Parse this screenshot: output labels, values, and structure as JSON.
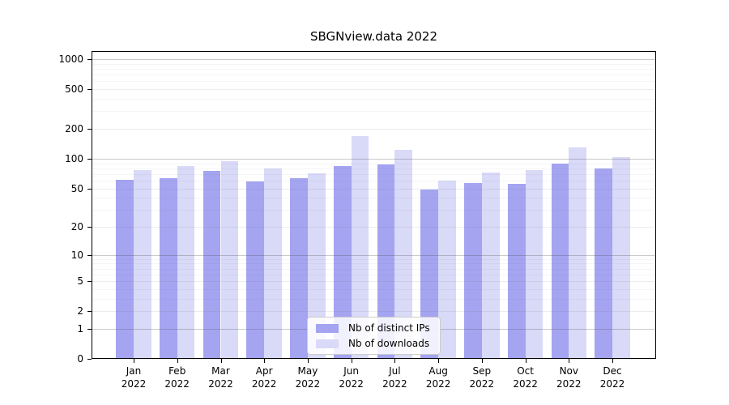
{
  "window": {
    "background": "#ffffff"
  },
  "chart_data": {
    "type": "bar",
    "title": "SBGNview.data 2022",
    "categories": [
      "Jan",
      "Feb",
      "Mar",
      "Apr",
      "May",
      "Jun",
      "Jul",
      "Aug",
      "Sep",
      "Oct",
      "Nov",
      "Dec"
    ],
    "year_label": "2022",
    "series": [
      {
        "name": "Nb of distinct IPs",
        "color": "#a4a4f1",
        "values": [
          61,
          63,
          75,
          59,
          63,
          84,
          88,
          49,
          57,
          56,
          89,
          80
        ]
      },
      {
        "name": "Nb of downloads",
        "color": "#d9d9f8",
        "values": [
          77,
          85,
          94,
          80,
          71,
          168,
          124,
          60,
          72,
          76,
          131,
          103
        ]
      }
    ],
    "yscale": "log10(1+x)",
    "y_ticks": [
      1000,
      500,
      200,
      100,
      50,
      20,
      10,
      5,
      2,
      1,
      0
    ],
    "ylim": [
      0,
      1200
    ],
    "grid": "horizontal",
    "legend_position": "inside-bottom-center",
    "colors": {
      "axis": "#000000",
      "major_grid": "#c9c9c9",
      "minor_grid": "#f0f0f0",
      "legend_border": "#cccccc"
    }
  }
}
